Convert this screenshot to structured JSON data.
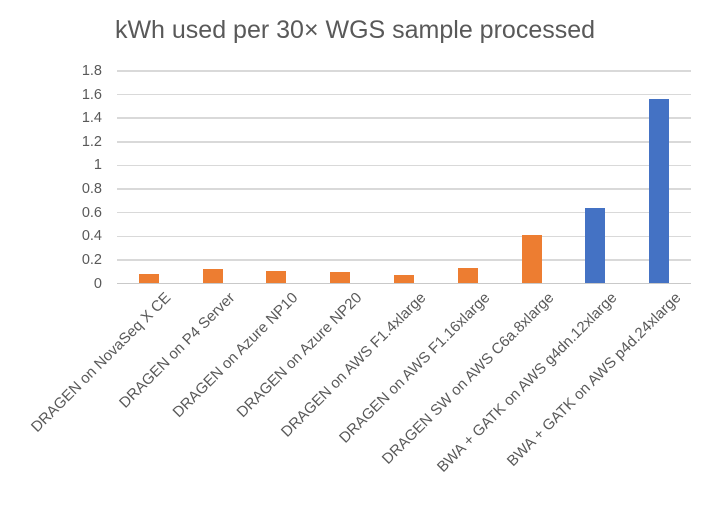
{
  "chart_data": {
    "type": "bar",
    "title": "kWh used per 30× WGS sample processed",
    "categories": [
      "DRAGEN on NovaSeq X CE",
      "DRAGEN on P4 Server",
      "DRAGEN on Azure NP10",
      "DRAGEN on Azure NP20",
      "DRAGEN on AWS F1.4xlarge",
      "DRAGEN on AWS F1.16xlarge",
      "DRAGEN SW on AWS C6a.8xlarge",
      "BWA + GATK on AWS g4dn.12xlarge",
      "BWA + GATK on AWS p4d.24xlarge"
    ],
    "values": [
      0.08,
      0.12,
      0.11,
      0.1,
      0.07,
      0.13,
      0.41,
      0.64,
      1.56
    ],
    "bar_colors": [
      "#ED7D31",
      "#ED7D31",
      "#ED7D31",
      "#ED7D31",
      "#ED7D31",
      "#ED7D31",
      "#ED7D31",
      "#4472C4",
      "#4472C4"
    ],
    "y_ticks": [
      "0",
      "0.2",
      "0.4",
      "0.6",
      "0.8",
      "1",
      "1.2",
      "1.4",
      "1.6",
      "1.8"
    ],
    "ylim": [
      0,
      1.8
    ],
    "xlabel": "",
    "ylabel": "",
    "grid": true,
    "legend_position": "none",
    "colors": {
      "orange_series": "#ED7D31",
      "blue_series": "#4472C4",
      "text": "#595959",
      "gridline": "#D9D9D9",
      "background": "#FFFFFF"
    }
  }
}
